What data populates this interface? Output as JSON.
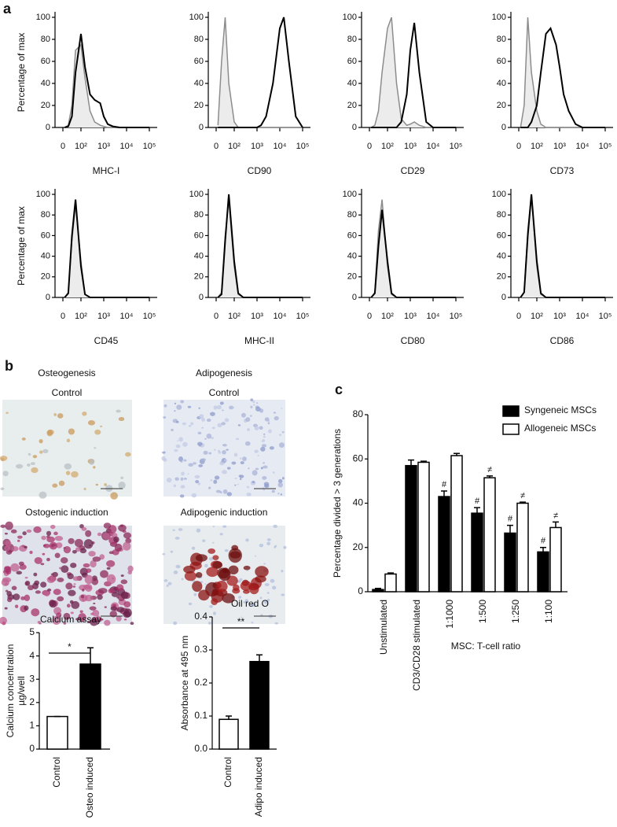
{
  "figure": {
    "panel_labels": [
      "a",
      "b",
      "c"
    ],
    "captions": [
      "Osteogenesis",
      "Adipogenesis",
      "Control",
      "Control",
      "Ostogenic induction",
      "Adipogenic induction"
    ]
  },
  "chart_data": [
    {
      "type": "line",
      "xlabel": "MHC-I",
      "ylabel": "Percentage of max",
      "xscale": "biexponential",
      "x": [
        10,
        30,
        50,
        70,
        100,
        150,
        250,
        400,
        700,
        1000,
        1500,
        2500,
        5000,
        10000,
        15000,
        25000,
        50000,
        100000
      ],
      "xlim": [
        0,
        100000
      ],
      "xticks": [
        0,
        {
          "value": 100,
          "label": "10²"
        },
        {
          "value": 1000,
          "label": "10³"
        },
        {
          "value": 10000,
          "label": "10⁴"
        },
        {
          "value": 100000,
          "label": "10⁵"
        }
      ],
      "ylim": [
        0,
        100
      ],
      "yticks": [
        0,
        20,
        40,
        60,
        80,
        100
      ],
      "series": [
        {
          "color": "#8c8c8c",
          "fill": "#ececec",
          "values": [
            0,
            2,
            20,
            70,
            75,
            45,
            15,
            5,
            2,
            1,
            0,
            0,
            0,
            0,
            0,
            0,
            0,
            0
          ]
        },
        {
          "color": "#000000",
          "values": [
            0,
            1,
            10,
            50,
            85,
            55,
            30,
            25,
            22,
            10,
            3,
            1,
            0,
            0,
            0,
            0,
            0,
            0
          ]
        }
      ]
    },
    {
      "type": "line",
      "xlabel": "CD90",
      "xscale": "biexponential",
      "x": [
        10,
        30,
        50,
        70,
        100,
        150,
        250,
        400,
        700,
        1000,
        1500,
        2500,
        5000,
        10000,
        15000,
        25000,
        50000,
        100000
      ],
      "xlim": [
        0,
        100000
      ],
      "xticks": [
        0,
        {
          "value": 100,
          "label": "10²"
        },
        {
          "value": 1000,
          "label": "10³"
        },
        {
          "value": 10000,
          "label": "10⁴"
        },
        {
          "value": 100000,
          "label": "10⁵"
        }
      ],
      "ylim": [
        0,
        100
      ],
      "yticks": [
        0,
        20,
        40,
        60,
        80,
        100
      ],
      "series": [
        {
          "color": "#8c8c8c",
          "fill": "#ececec",
          "values": [
            2,
            60,
            100,
            40,
            5,
            0,
            0,
            0,
            0,
            0,
            0,
            0,
            0,
            0,
            0,
            0,
            0,
            0
          ]
        },
        {
          "color": "#000000",
          "values": [
            0,
            0,
            0,
            0,
            0,
            0,
            0,
            0,
            0,
            0,
            2,
            10,
            40,
            90,
            100,
            60,
            10,
            0
          ]
        }
      ]
    },
    {
      "type": "line",
      "xlabel": "CD29",
      "xscale": "biexponential",
      "x": [
        10,
        30,
        50,
        70,
        100,
        150,
        250,
        400,
        700,
        1000,
        1500,
        2500,
        5000,
        10000,
        15000,
        25000,
        50000,
        100000
      ],
      "xlim": [
        0,
        100000
      ],
      "xticks": [
        0,
        {
          "value": 100,
          "label": "10²"
        },
        {
          "value": 1000,
          "label": "10³"
        },
        {
          "value": 10000,
          "label": "10⁴"
        },
        {
          "value": 100000,
          "label": "10⁵"
        }
      ],
      "ylim": [
        0,
        100
      ],
      "yticks": [
        0,
        20,
        40,
        60,
        80,
        100
      ],
      "series": [
        {
          "color": "#8c8c8c",
          "fill": "#ececec",
          "values": [
            0,
            2,
            15,
            50,
            90,
            100,
            40,
            8,
            2,
            3,
            5,
            2,
            0,
            0,
            0,
            0,
            0,
            0
          ]
        },
        {
          "color": "#000000",
          "values": [
            0,
            0,
            0,
            0,
            0,
            0,
            0,
            5,
            30,
            70,
            95,
            50,
            5,
            0,
            0,
            0,
            0,
            0
          ]
        }
      ]
    },
    {
      "type": "line",
      "xlabel": "CD73",
      "xscale": "biexponential",
      "x": [
        10,
        30,
        50,
        70,
        100,
        150,
        250,
        400,
        700,
        1000,
        1500,
        2500,
        5000,
        10000,
        15000,
        25000,
        50000,
        100000
      ],
      "xlim": [
        0,
        100000
      ],
      "xticks": [
        0,
        {
          "value": 100,
          "label": "10²"
        },
        {
          "value": 1000,
          "label": "10³"
        },
        {
          "value": 10000,
          "label": "10⁴"
        },
        {
          "value": 100000,
          "label": "10⁵"
        }
      ],
      "ylim": [
        0,
        100
      ],
      "yticks": [
        0,
        20,
        40,
        60,
        80,
        100
      ],
      "series": [
        {
          "color": "#8c8c8c",
          "fill": "#ececec",
          "values": [
            0,
            20,
            100,
            50,
            15,
            3,
            0,
            0,
            0,
            0,
            0,
            0,
            0,
            0,
            0,
            0,
            0,
            0
          ]
        },
        {
          "color": "#000000",
          "values": [
            0,
            0,
            0,
            5,
            20,
            50,
            85,
            90,
            75,
            55,
            30,
            15,
            3,
            0,
            0,
            0,
            0,
            0
          ]
        }
      ]
    },
    {
      "type": "line",
      "xlabel": "CD45",
      "ylabel": "Percentage of max",
      "xscale": "biexponential",
      "x": [
        10,
        30,
        50,
        70,
        100,
        150,
        250,
        400,
        700,
        1000,
        1500,
        2500,
        5000,
        10000,
        15000,
        25000,
        50000,
        100000
      ],
      "xlim": [
        0,
        100000
      ],
      "xticks": [
        0,
        {
          "value": 100,
          "label": "10²"
        },
        {
          "value": 1000,
          "label": "10³"
        },
        {
          "value": 10000,
          "label": "10⁴"
        },
        {
          "value": 100000,
          "label": "10⁵"
        }
      ],
      "ylim": [
        0,
        100
      ],
      "yticks": [
        0,
        20,
        40,
        60,
        80,
        100
      ],
      "series": [
        {
          "color": "#8c8c8c",
          "fill": "#ececec",
          "values": [
            0,
            5,
            55,
            90,
            35,
            3,
            0,
            0,
            0,
            0,
            0,
            0,
            0,
            0,
            0,
            0,
            0,
            0
          ]
        },
        {
          "color": "#000000",
          "values": [
            0,
            4,
            60,
            95,
            30,
            3,
            0,
            0,
            0,
            0,
            0,
            0,
            0,
            0,
            0,
            0,
            0,
            0
          ]
        }
      ]
    },
    {
      "type": "line",
      "xlabel": "MHC-II",
      "xscale": "biexponential",
      "x": [
        10,
        30,
        50,
        70,
        100,
        150,
        250,
        400,
        700,
        1000,
        1500,
        2500,
        5000,
        10000,
        15000,
        25000,
        50000,
        100000
      ],
      "xlim": [
        0,
        100000
      ],
      "xticks": [
        0,
        {
          "value": 100,
          "label": "10²"
        },
        {
          "value": 1000,
          "label": "10³"
        },
        {
          "value": 10000,
          "label": "10⁴"
        },
        {
          "value": 100000,
          "label": "10⁵"
        }
      ],
      "ylim": [
        0,
        100
      ],
      "yticks": [
        0,
        20,
        40,
        60,
        80,
        100
      ],
      "series": [
        {
          "color": "#8c8c8c",
          "fill": "#ececec",
          "values": [
            0,
            5,
            60,
            95,
            30,
            3,
            0,
            0,
            0,
            0,
            0,
            0,
            0,
            0,
            0,
            0,
            0,
            0
          ]
        },
        {
          "color": "#000000",
          "values": [
            0,
            3,
            55,
            100,
            35,
            4,
            0,
            0,
            0,
            0,
            0,
            0,
            0,
            0,
            0,
            0,
            0,
            0
          ]
        }
      ]
    },
    {
      "type": "line",
      "xlabel": "CD80",
      "xscale": "biexponential",
      "x": [
        10,
        30,
        50,
        70,
        100,
        150,
        250,
        400,
        700,
        1000,
        1500,
        2500,
        5000,
        10000,
        15000,
        25000,
        50000,
        100000
      ],
      "xlim": [
        0,
        100000
      ],
      "xticks": [
        0,
        {
          "value": 100,
          "label": "10²"
        },
        {
          "value": 1000,
          "label": "10³"
        },
        {
          "value": 10000,
          "label": "10⁴"
        },
        {
          "value": 100000,
          "label": "10⁵"
        }
      ],
      "ylim": [
        0,
        100
      ],
      "yticks": [
        0,
        20,
        40,
        60,
        80,
        100
      ],
      "series": [
        {
          "color": "#8c8c8c",
          "fill": "#ececec",
          "values": [
            0,
            5,
            65,
            95,
            30,
            3,
            0,
            0,
            0,
            0,
            0,
            0,
            0,
            0,
            0,
            0,
            0,
            0
          ]
        },
        {
          "color": "#000000",
          "values": [
            0,
            4,
            50,
            85,
            35,
            4,
            0,
            0,
            0,
            0,
            0,
            0,
            0,
            0,
            0,
            0,
            0,
            0
          ]
        }
      ]
    },
    {
      "type": "line",
      "xlabel": "CD86",
      "xscale": "biexponential",
      "x": [
        10,
        30,
        50,
        70,
        100,
        150,
        250,
        400,
        700,
        1000,
        1500,
        2500,
        5000,
        10000,
        15000,
        25000,
        50000,
        100000
      ],
      "xlim": [
        0,
        100000
      ],
      "xticks": [
        0,
        {
          "value": 100,
          "label": "10²"
        },
        {
          "value": 1000,
          "label": "10³"
        },
        {
          "value": 10000,
          "label": "10⁴"
        },
        {
          "value": 100000,
          "label": "10⁵"
        }
      ],
      "ylim": [
        0,
        100
      ],
      "yticks": [
        0,
        20,
        40,
        60,
        80,
        100
      ],
      "series": [
        {
          "color": "#8c8c8c",
          "fill": "#ececec",
          "values": [
            0,
            5,
            65,
            100,
            30,
            3,
            0,
            0,
            0,
            0,
            0,
            0,
            0,
            0,
            0,
            0,
            0,
            0
          ]
        },
        {
          "color": "#000000",
          "values": [
            0,
            5,
            60,
            100,
            35,
            4,
            0,
            0,
            0,
            0,
            0,
            0,
            0,
            0,
            0,
            0,
            0,
            0
          ]
        }
      ]
    },
    {
      "type": "bar",
      "title": "Calcium assay",
      "ylabel": [
        "Calcium concentration",
        "µg/well"
      ],
      "categories": [
        "Control",
        "Osteo induced"
      ],
      "values": [
        1.4,
        3.65
      ],
      "errors": [
        0,
        0.7
      ],
      "colors": [
        "#ffffff",
        "#000000"
      ],
      "ylim": [
        0,
        5
      ],
      "yticks": [
        0,
        1,
        2,
        3,
        4,
        5
      ],
      "significance": "*"
    },
    {
      "type": "bar",
      "title": "Oil red O",
      "ylabel": [
        "Absorbance at 495 nm"
      ],
      "categories": [
        "Control",
        "Adipo induced"
      ],
      "values": [
        0.09,
        0.265
      ],
      "errors": [
        0.01,
        0.02
      ],
      "colors": [
        "#ffffff",
        "#000000"
      ],
      "ylim": [
        0,
        0.4
      ],
      "yticks": [
        {
          "value": 0,
          "label": "0.0"
        },
        0.1,
        0.2,
        0.3,
        0.4
      ],
      "significance": "**"
    },
    {
      "type": "bar",
      "ylabel": [
        "Percentage divided > 3 generations"
      ],
      "xlabel": "MSC: T-cell ratio",
      "categories": [
        "Unstimulated",
        "CD3/CD28 stimulated",
        "1:1000",
        "1:500",
        "1:250",
        "1:100"
      ],
      "series": [
        {
          "name": "Syngeneic MSCs",
          "color": "#000000",
          "values": [
            1,
            57,
            43,
            35.5,
            26.5,
            18
          ],
          "errors": [
            0.5,
            2.5,
            2.5,
            2.5,
            3.5,
            2
          ],
          "annotations": [
            null,
            null,
            "#",
            "#",
            "#",
            "#"
          ]
        },
        {
          "name": "Allogeneic MSCs",
          "color": "#ffffff",
          "values": [
            8,
            58.5,
            61.5,
            51.5,
            40,
            29
          ],
          "errors": [
            0.5,
            0.5,
            1,
            0.8,
            0.5,
            2.5
          ],
          "annotations": [
            null,
            null,
            null,
            "≠",
            "≠",
            "≠"
          ]
        }
      ],
      "ylim": [
        0,
        80
      ],
      "yticks": [
        0,
        20,
        40,
        60,
        80
      ],
      "legend": "upper right"
    }
  ]
}
